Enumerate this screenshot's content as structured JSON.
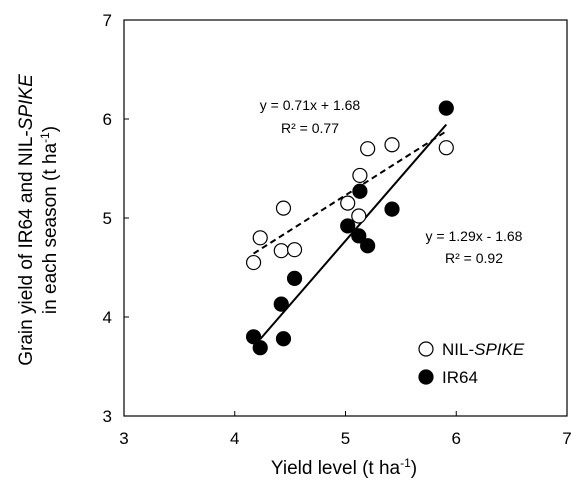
{
  "chart_data": {
    "type": "scatter",
    "title": "",
    "xlabel": {
      "main": "Yield level  (t ha",
      "sup": "-1",
      "end": ")"
    },
    "ylabel": {
      "line1_a": "Grain yield of IR64 and NIL-",
      "line1_italic": "SPIKE",
      "line2_a": "in each season  (t ha",
      "line2_sup": "-1",
      "line2_end": ")"
    },
    "xlim": [
      3,
      7
    ],
    "ylim": [
      3,
      7
    ],
    "xticks": [
      "3",
      "4",
      "5",
      "6",
      "7"
    ],
    "yticks": [
      "3",
      "4",
      "5",
      "6",
      "7"
    ],
    "grid": false,
    "legend_position": "bottom-right",
    "series": [
      {
        "name": "NIL-SPIKE",
        "legend_prefix": "NIL-",
        "legend_italic": "SPIKE",
        "marker": "open-circle",
        "color": "#000000",
        "x": [
          4.17,
          4.23,
          4.42,
          4.44,
          4.54,
          5.02,
          5.12,
          5.13,
          5.2,
          5.42,
          5.91
        ],
        "y": [
          4.55,
          4.8,
          4.67,
          5.1,
          4.68,
          5.15,
          5.02,
          5.43,
          5.7,
          5.74,
          5.71
        ],
        "fit": {
          "slope": 0.71,
          "intercept": 1.68,
          "x_range": [
            4.17,
            5.91
          ],
          "style": "dashed"
        },
        "equation": "y = 0.71x + 1.68",
        "r2": "R² = 0.77"
      },
      {
        "name": "IR64",
        "legend_prefix": "IR64",
        "legend_italic": "",
        "marker": "filled-circle",
        "color": "#000000",
        "x": [
          4.17,
          4.23,
          4.42,
          4.44,
          4.54,
          5.02,
          5.12,
          5.13,
          5.2,
          5.42,
          5.91
        ],
        "y": [
          3.8,
          3.69,
          4.13,
          3.78,
          4.39,
          4.92,
          4.82,
          5.27,
          4.72,
          5.09,
          6.11
        ],
        "fit": {
          "slope": 1.29,
          "intercept": -1.68,
          "x_range": [
            4.23,
            5.91
          ],
          "style": "solid"
        },
        "equation": "y = 1.29x - 1.68",
        "r2": "R² = 0.92"
      }
    ]
  }
}
